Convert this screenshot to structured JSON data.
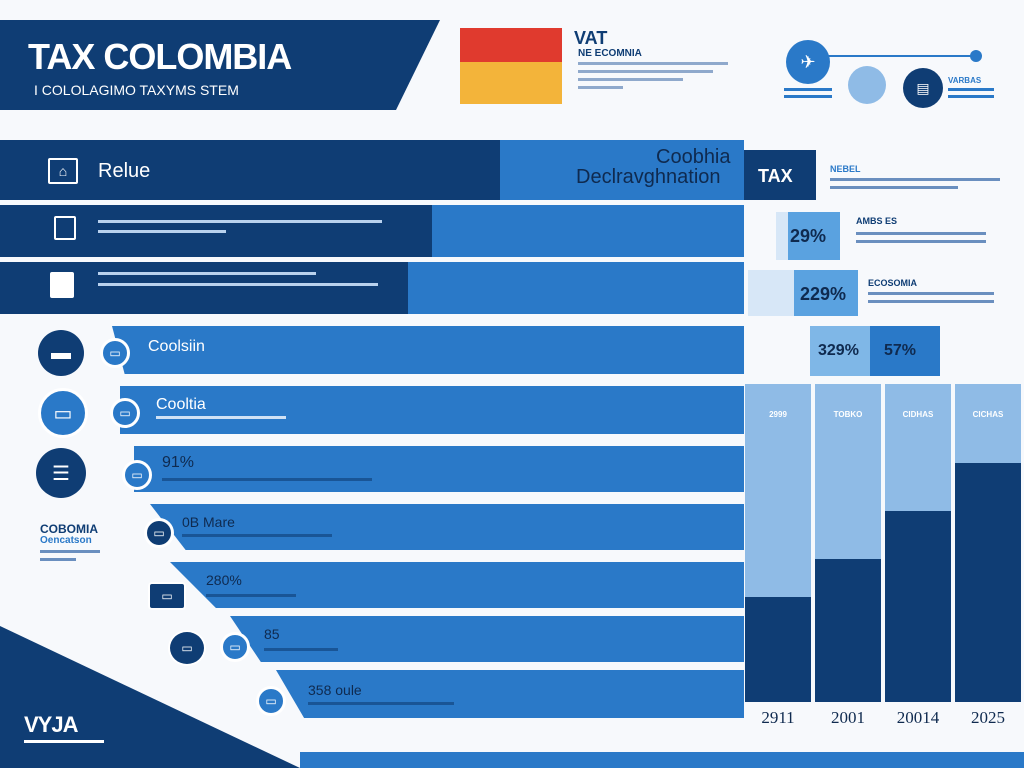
{
  "header": {
    "title": "TAX COLOMBIA",
    "subtitle": "I COLOLAGIMO TAXYMS STEM",
    "vat_label": "VAT",
    "vat_sub": "NE ECOMNIA"
  },
  "top_icons": {
    "label": "VARBAS"
  },
  "rows": {
    "row1_title": "Relue",
    "banner_line1": "Coobhia",
    "banner_line2": "Declravghnation",
    "tax_tab": "TAX",
    "side1_title": "NEBEL",
    "pct1": "29%",
    "side2_title": "AMBS ES",
    "pct2": "229%",
    "side3_title": "ECOSOMIA",
    "pct3": "329%",
    "pct4": "57%",
    "stair1": "Coolsiin",
    "stair2": "Cooltia",
    "stair3": "91%",
    "stair4": "0B  Mare",
    "stair5": "280%",
    "stair6": "85",
    "stair7": "358  oule",
    "left_label1": "COBOMIA",
    "left_label2": "Oencatson",
    "logo": "VYJA"
  },
  "chart_data": {
    "type": "bar",
    "categories": [
      "2911",
      "2001",
      "20014",
      "2025"
    ],
    "column_labels": [
      "2999",
      "TOBKO",
      "CIDHAS",
      "CICHAS"
    ],
    "values": [
      0.22,
      0.3,
      0.4,
      0.5
    ]
  },
  "colors": {
    "dark": "#0f3d74",
    "mid": "#2a79c8",
    "light": "#5aa2e0",
    "red": "#e03a2e",
    "yellow": "#f3b43a"
  }
}
